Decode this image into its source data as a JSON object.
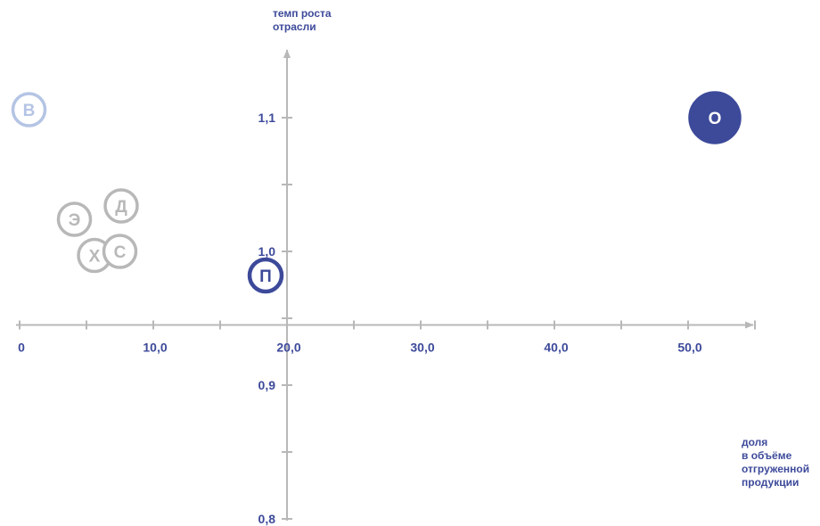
{
  "chart_data": {
    "type": "scatter",
    "xlabel": "доля в объёме отгруженной продукции",
    "xlabel_lines": [
      "доля",
      "в объёме",
      "отгруженной",
      "продукции"
    ],
    "ylabel": "темп роста отрасли",
    "ylabel_lines": [
      "темп роста",
      "отрасли"
    ],
    "x_ticks": [
      {
        "value": 0,
        "label": "0"
      },
      {
        "value": 10,
        "label": "10,0"
      },
      {
        "value": 20,
        "label": "20,0"
      },
      {
        "value": 30,
        "label": "30,0"
      },
      {
        "value": 40,
        "label": "40,0"
      },
      {
        "value": 50,
        "label": "50,0"
      }
    ],
    "y_ticks": [
      {
        "value": 0.8,
        "label": "0,8"
      },
      {
        "value": 0.9,
        "label": "0,9"
      },
      {
        "value": 1.0,
        "label": "1,0"
      },
      {
        "value": 1.1,
        "label": "1,1"
      }
    ],
    "xlim": [
      0,
      55
    ],
    "ylim": [
      0.78,
      1.15
    ],
    "axis_cross": {
      "x": 20,
      "y": 0.945
    },
    "grid": false,
    "points": [
      {
        "label": "В",
        "x": 0.7,
        "y": 1.106,
        "style": "outline",
        "color": "#b4c4e4"
      },
      {
        "label": "Д",
        "x": 7.6,
        "y": 1.034,
        "style": "outline",
        "color": "#b8b8b8"
      },
      {
        "label": "Э",
        "x": 4.1,
        "y": 1.024,
        "style": "outline",
        "color": "#b8b8b8"
      },
      {
        "label": "Х",
        "x": 5.6,
        "y": 0.997,
        "style": "outline",
        "color": "#b8b8b8"
      },
      {
        "label": "С",
        "x": 7.5,
        "y": 1.0,
        "style": "outline",
        "color": "#b8b8b8"
      },
      {
        "label": "П",
        "x": 18.4,
        "y": 0.982,
        "style": "outline",
        "color": "#3d4a9a"
      },
      {
        "label": "О",
        "x": 52.0,
        "y": 1.1,
        "style": "filled",
        "color": "#3d4a9a"
      }
    ]
  }
}
